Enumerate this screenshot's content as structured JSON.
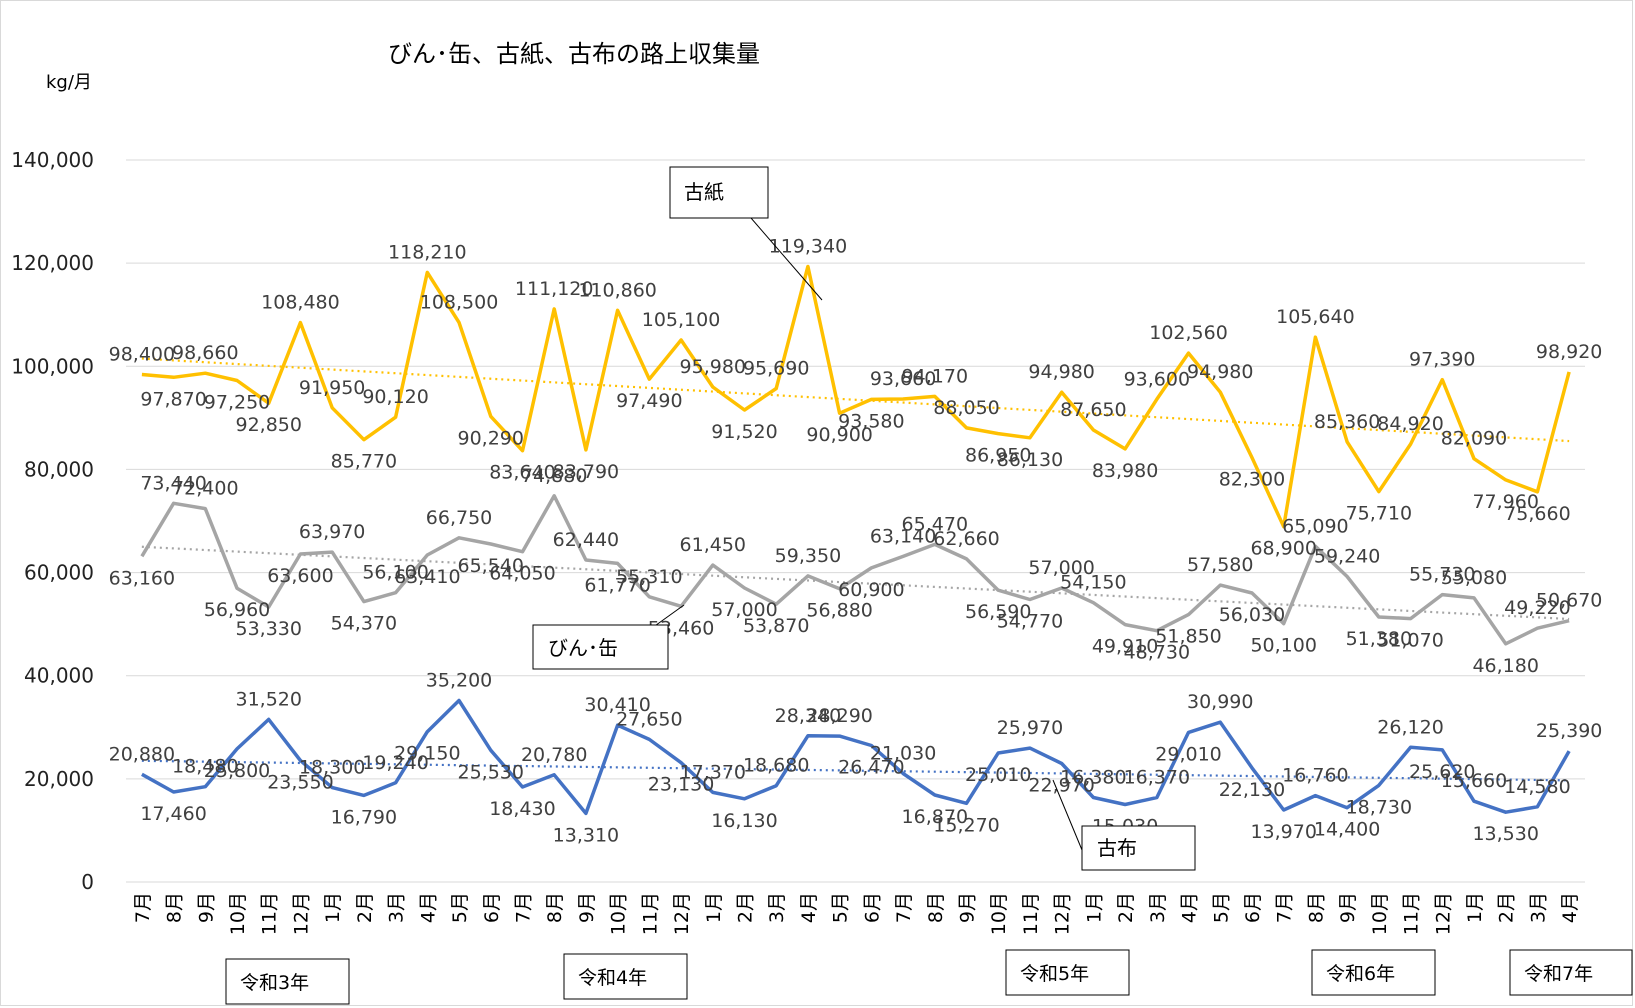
{
  "chart_data": {
    "type": "line",
    "title": "びん･缶、古紙、古布の路上収集量",
    "ylabel": "kg/月",
    "ylim": [
      0,
      140000
    ],
    "yticks": [
      "0",
      "20,000",
      "40,000",
      "60,000",
      "80,000",
      "100,000",
      "120,000",
      "140,000"
    ],
    "grid": true,
    "categories": [
      "7月",
      "8月",
      "9月",
      "10月",
      "11月",
      "12月",
      "1月",
      "2月",
      "3月",
      "4月",
      "5月",
      "6月",
      "7月",
      "8月",
      "9月",
      "10月",
      "11月",
      "12月",
      "1月",
      "2月",
      "3月",
      "4月",
      "5月",
      "6月",
      "7月",
      "8月",
      "9月",
      "10月",
      "11月",
      "12月",
      "1月",
      "2月",
      "3月",
      "4月",
      "5月",
      "6月",
      "7月",
      "8月",
      "9月",
      "10月",
      "11月",
      "12月",
      "1月",
      "2月",
      "3月",
      "4月"
    ],
    "era_labels": [
      "令和3年",
      "令和4年",
      "令和5年",
      "令和6年",
      "令和7年"
    ],
    "series": [
      {
        "name": "古紙",
        "color": "#FFC000",
        "values": [
          98400,
          97870,
          98660,
          97250,
          92850,
          108480,
          91950,
          85770,
          90120,
          118210,
          108500,
          90290,
          83640,
          111120,
          83790,
          110860,
          97490,
          105100,
          95980,
          91520,
          95690,
          119340,
          90900,
          93580,
          93660,
          94170,
          88050,
          86950,
          86130,
          94980,
          87650,
          83980,
          93600,
          102560,
          94980,
          82300,
          68900,
          105640,
          85360,
          75710,
          84920,
          97390,
          82090,
          77960,
          75660,
          98920
        ],
        "labels": [
          "98,400",
          "97,870",
          "98,660",
          "97,250",
          "92,850",
          "108,480",
          "91,950",
          "85,770",
          "90,120",
          "118,210",
          "108,500",
          "90,290",
          "83,640",
          "111,120",
          "83,790",
          "110,860",
          "97,490",
          "105,100",
          "95,980",
          "91,520",
          "95,690",
          "119,340",
          "90,900",
          "93,580",
          "93,660",
          "94,170",
          "88,050",
          "86,950",
          "86,130",
          "94,980",
          "87,650",
          "83,980",
          "93,600",
          "102,560",
          "94,980",
          "82,300",
          "68,900",
          "105,640",
          "85,360",
          "75,710",
          "84,920",
          "97,390",
          "82,090",
          "77,960",
          "75,660",
          "98,920"
        ],
        "trend": [
          101500,
          85500
        ]
      },
      {
        "name": "びん･缶",
        "color": "#A5A5A5",
        "values": [
          63160,
          73440,
          72400,
          56960,
          53330,
          63600,
          63970,
          54370,
          56100,
          63410,
          66750,
          65540,
          64050,
          74880,
          62440,
          61770,
          55310,
          53460,
          61450,
          57000,
          53870,
          59350,
          56880,
          60900,
          63140,
          65470,
          62660,
          56590,
          54770,
          57000,
          54150,
          49910,
          48730,
          51850,
          57580,
          56030,
          50100,
          65090,
          59240,
          51380,
          51070,
          55730,
          55080,
          46180,
          49220,
          50670
        ],
        "labels": [
          "63,160",
          "73,440",
          "72,400",
          "56,960",
          "53,330",
          "63,600",
          "63,970",
          "54,370",
          "56,100",
          "63,410",
          "66,750",
          "65,540",
          "64,050",
          "74,880",
          "62,440",
          "61,770",
          "55,310",
          "53,460",
          "61,450",
          "57,000",
          "53,870",
          "59,350",
          "56,880",
          "60,900",
          "63,140",
          "65,470",
          "62,660",
          "56,590",
          "54,770",
          "57,000",
          "54,150",
          "49,910",
          "48,730",
          "51,850",
          "57,580",
          "56,030",
          "50,100",
          "65,090",
          "59,240",
          "51,380",
          "51,070",
          "55,730",
          "55,080",
          "46,180",
          "49,220",
          "50,670"
        ],
        "trend": [
          65000,
          51000
        ]
      },
      {
        "name": "古布",
        "color": "#4472C4",
        "values": [
          20880,
          17460,
          18480,
          25800,
          31520,
          23550,
          18300,
          16790,
          19240,
          29150,
          35200,
          25530,
          18430,
          20780,
          13310,
          30410,
          27650,
          23130,
          17370,
          16130,
          18680,
          28340,
          28290,
          26470,
          21030,
          16870,
          15270,
          25010,
          25970,
          22970,
          16380,
          15030,
          16370,
          29010,
          30990,
          22130,
          13970,
          16760,
          14400,
          18730,
          26120,
          25620,
          15660,
          13530,
          14580,
          25390
        ],
        "labels": [
          "20,880",
          "17,460",
          "18,480",
          "25,800",
          "31,520",
          "23,550",
          "18,300",
          "16,790",
          "19,240",
          "29,150",
          "35,200",
          "25,530",
          "18,430",
          "20,780",
          "13,310",
          "30,410",
          "27,650",
          "23,130",
          "17,370",
          "16,130",
          "18,680",
          "28,340",
          "28,290",
          "26,470",
          "21,030",
          "16,870",
          "15,270",
          "25,010",
          "25,970",
          "22,970",
          "16,380",
          "15,030",
          "16,370",
          "29,010",
          "30,990",
          "22,130",
          "13,970",
          "16,760",
          "14,400",
          "18,730",
          "26,120",
          "25,620",
          "15,660",
          "13,530",
          "14,580",
          "25,390"
        ],
        "trend": [
          23500,
          19700
        ]
      }
    ],
    "callouts": [
      "古紙",
      "びん･缶",
      "古布"
    ]
  }
}
